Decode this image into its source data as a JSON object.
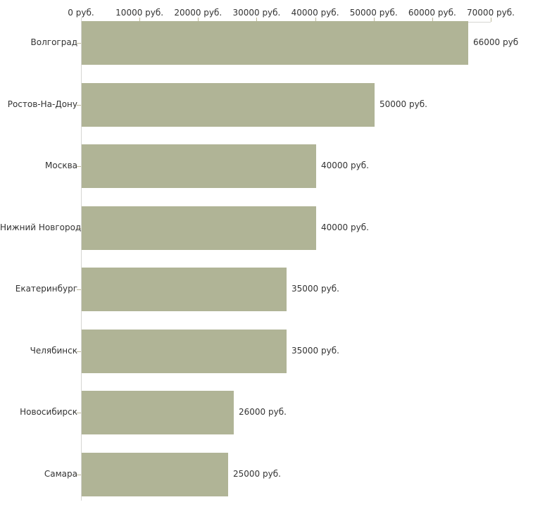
{
  "colors": {
    "background": "#ffffff",
    "bar": "#b0b496",
    "axis_line": "#d6d6d2",
    "tick_mark": "#bdb89a",
    "text": "#333333"
  },
  "chart_data": {
    "type": "bar",
    "orientation": "horizontal",
    "title": "",
    "xlabel": "",
    "ylabel": "",
    "x_axis_position": "top",
    "xlim": [
      0,
      70000
    ],
    "grid": false,
    "legend": false,
    "x_tick_values": [
      0,
      10000,
      20000,
      30000,
      40000,
      50000,
      60000,
      70000
    ],
    "x_tick_labels": [
      "0 руб.",
      "10000 руб.",
      "20000 руб.",
      "30000 руб.",
      "40000 руб.",
      "50000 руб.",
      "60000 руб.",
      "70000 руб."
    ],
    "categories": [
      "Волгоград",
      "Ростов-На-Дону",
      "Москва",
      "Нижний Новгород",
      "Екатеринбург",
      "Челябинск",
      "Новосибирск",
      "Самара"
    ],
    "values": [
      66000,
      50000,
      40000,
      40000,
      35000,
      35000,
      26000,
      25000
    ],
    "bar_value_labels": [
      "66000 руб",
      "50000 руб.",
      "40000 руб.",
      "40000 руб.",
      "35000 руб.",
      "35000 руб.",
      "26000 руб.",
      "25000 руб."
    ]
  }
}
